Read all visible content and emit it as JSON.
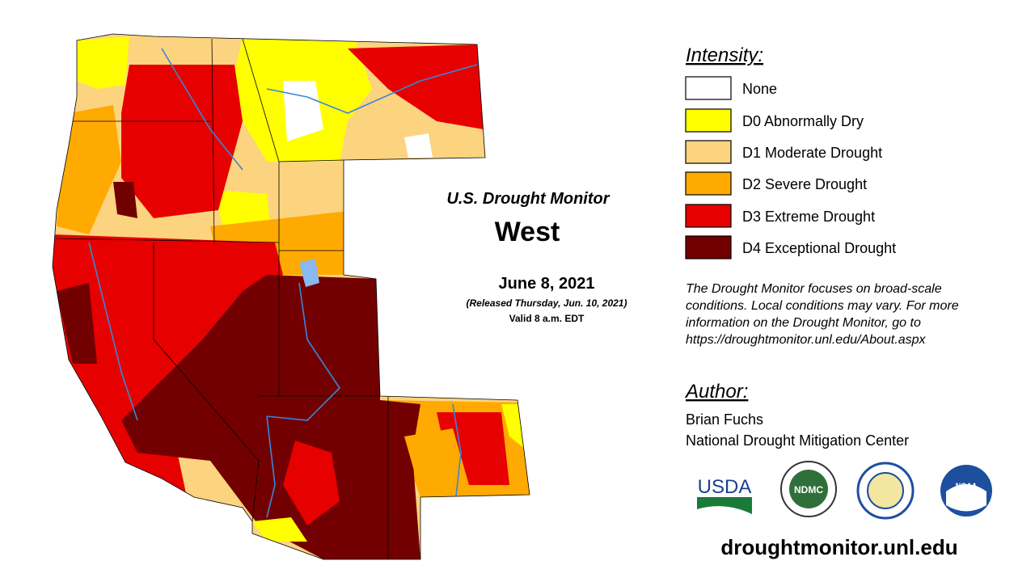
{
  "map": {
    "title": "U.S. Drought Monitor",
    "region": "West",
    "date": "June 8, 2021",
    "released": "(Released Thursday, Jun. 10, 2021)",
    "valid": "Valid 8 a.m. EDT"
  },
  "legend": {
    "title": "Intensity:",
    "items": [
      {
        "label": "None",
        "color": "#ffffff"
      },
      {
        "label": "D0 Abnormally Dry",
        "color": "#ffff00"
      },
      {
        "label": "D1 Moderate Drought",
        "color": "#fcd37f"
      },
      {
        "label": "D2 Severe Drought",
        "color": "#ffaa00"
      },
      {
        "label": "D3 Extreme Drought",
        "color": "#e60000"
      },
      {
        "label": "D4 Exceptional Drought",
        "color": "#730000"
      }
    ]
  },
  "note": [
    "The Drought Monitor focuses on broad-scale",
    "conditions. Local conditions may vary. For more",
    "information on the Drought Monitor, go to",
    "https://droughtmonitor.unl.edu/About.aspx"
  ],
  "author": {
    "title": "Author:",
    "name": "Brian Fuchs",
    "org": "National Drought Mitigation Center"
  },
  "logos": [
    "USDA",
    "NDMC",
    "NOAA"
  ],
  "url": "droughtmonitor.unl.edu"
}
